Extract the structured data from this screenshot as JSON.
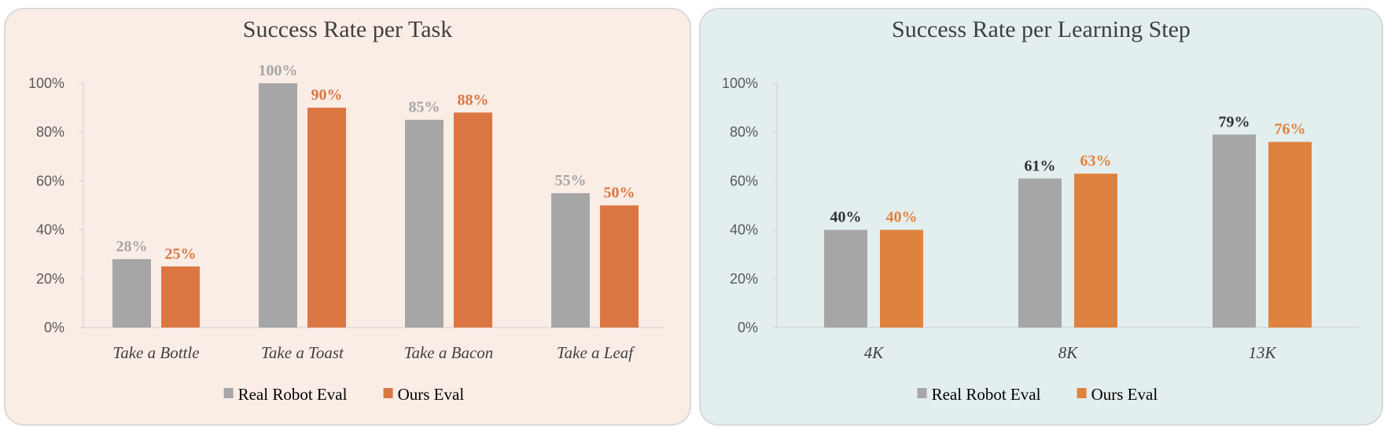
{
  "chart_data": [
    {
      "type": "bar",
      "title": "Success Rate per Task",
      "categories": [
        "Take a Bottle",
        "Take a Toast",
        "Take a Bacon",
        "Take a Leaf"
      ],
      "series": [
        {
          "name": "Real Robot Eval",
          "values": [
            28,
            100,
            85,
            55
          ],
          "color": "#a6a6a6",
          "label_color": "#a6a6a6"
        },
        {
          "name": "Ours Eval",
          "values": [
            25,
            90,
            88,
            50
          ],
          "color": "#db7642",
          "label_color": "#db7642"
        }
      ],
      "yticks": [
        "0%",
        "20%",
        "40%",
        "60%",
        "80%",
        "100%"
      ],
      "ylim": [
        0,
        100
      ],
      "data_labels": [
        [
          "28%",
          "100%",
          "85%",
          "55%"
        ],
        [
          "25%",
          "90%",
          "88%",
          "50%"
        ]
      ],
      "grid": false,
      "legend": "bottom",
      "background": "#faede6"
    },
    {
      "type": "bar",
      "title": "Success Rate per Learning Step",
      "categories": [
        "4K",
        "8K",
        "13K"
      ],
      "series": [
        {
          "name": "Real Robot Eval",
          "values": [
            40,
            61,
            79
          ],
          "color": "#a6a6a6",
          "label_color": "#333333"
        },
        {
          "name": "Ours Eval",
          "values": [
            40,
            63,
            76
          ],
          "color": "#e0823f",
          "label_color": "#e0823f"
        }
      ],
      "yticks": [
        "0%",
        "20%",
        "40%",
        "60%",
        "80%",
        "100%"
      ],
      "ylim": [
        0,
        100
      ],
      "data_labels": [
        [
          "40%",
          "61%",
          "79%"
        ],
        [
          "40%",
          "63%",
          "76%"
        ]
      ],
      "grid": false,
      "legend": "bottom",
      "background": "#e3eeee"
    }
  ]
}
